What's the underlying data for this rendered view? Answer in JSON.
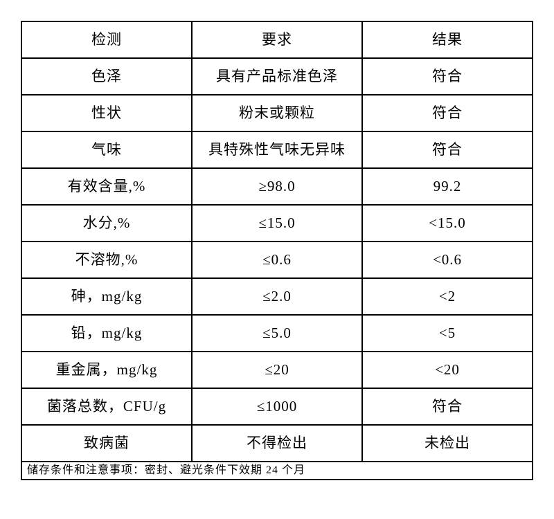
{
  "page": {
    "background_color": "#ffffff",
    "border_color": "#000000",
    "text_color": "#000000"
  },
  "table": {
    "headers": [
      "检测",
      "要求",
      "结果"
    ],
    "rows": [
      {
        "item": "色泽",
        "requirement": "具有产品标准色泽",
        "result": "符合"
      },
      {
        "item": "性状",
        "requirement": "粉末或颗粒",
        "result": "符合"
      },
      {
        "item": "气味",
        "requirement": "具特殊性气味无异味",
        "result": "符合"
      },
      {
        "item": "有效含量,%",
        "requirement": "≥98.0",
        "result": "99.2"
      },
      {
        "item": "水分,%",
        "requirement": "≤15.0",
        "result": "<15.0"
      },
      {
        "item": "不溶物,%",
        "requirement": "≤0.6",
        "result": "<0.6"
      },
      {
        "item": "砷，mg/kg",
        "requirement": "≤2.0",
        "result": "<2"
      },
      {
        "item": "铅，mg/kg",
        "requirement": "≤5.0",
        "result": "<5"
      },
      {
        "item": "重金属，mg/kg",
        "requirement": "≤20",
        "result": "<20"
      },
      {
        "item": "菌落总数，CFU/g",
        "requirement": "≤1000",
        "result": "符合"
      },
      {
        "item": "致病菌",
        "requirement": "不得检出",
        "result": "未检出"
      }
    ],
    "footer_note": "储存条件和注意事项：密封、避光条件下效期 24 个月"
  }
}
